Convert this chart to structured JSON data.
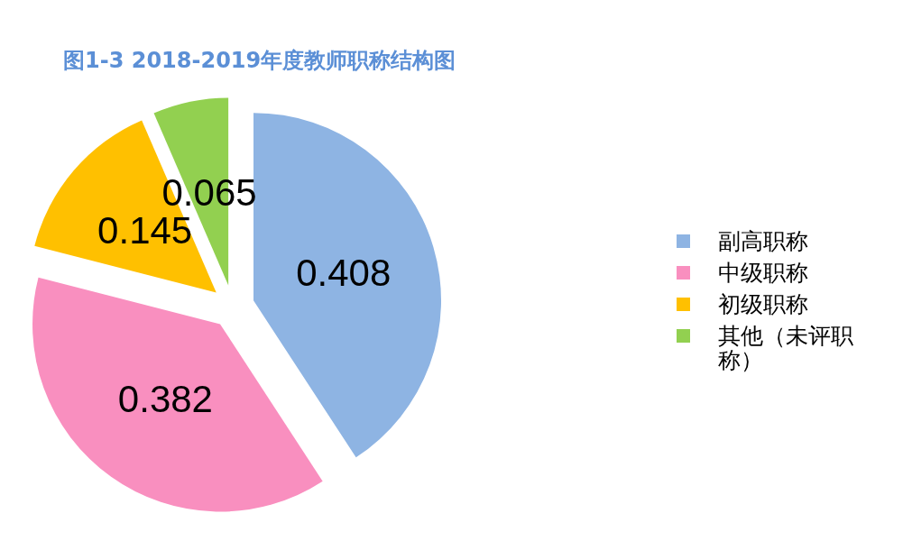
{
  "chart_data": {
    "type": "pie",
    "title": "图1-3   2018-2019年度教师职称结构图",
    "categories": [
      "副高职称",
      "中级职称",
      "初级职称",
      "其他（未评职称）"
    ],
    "values": [
      0.408,
      0.382,
      0.145,
      0.065
    ],
    "colors": [
      "#8eb4e3",
      "#f98fbf",
      "#ffc000",
      "#92d050"
    ],
    "data_labels": true,
    "legend": "right"
  }
}
